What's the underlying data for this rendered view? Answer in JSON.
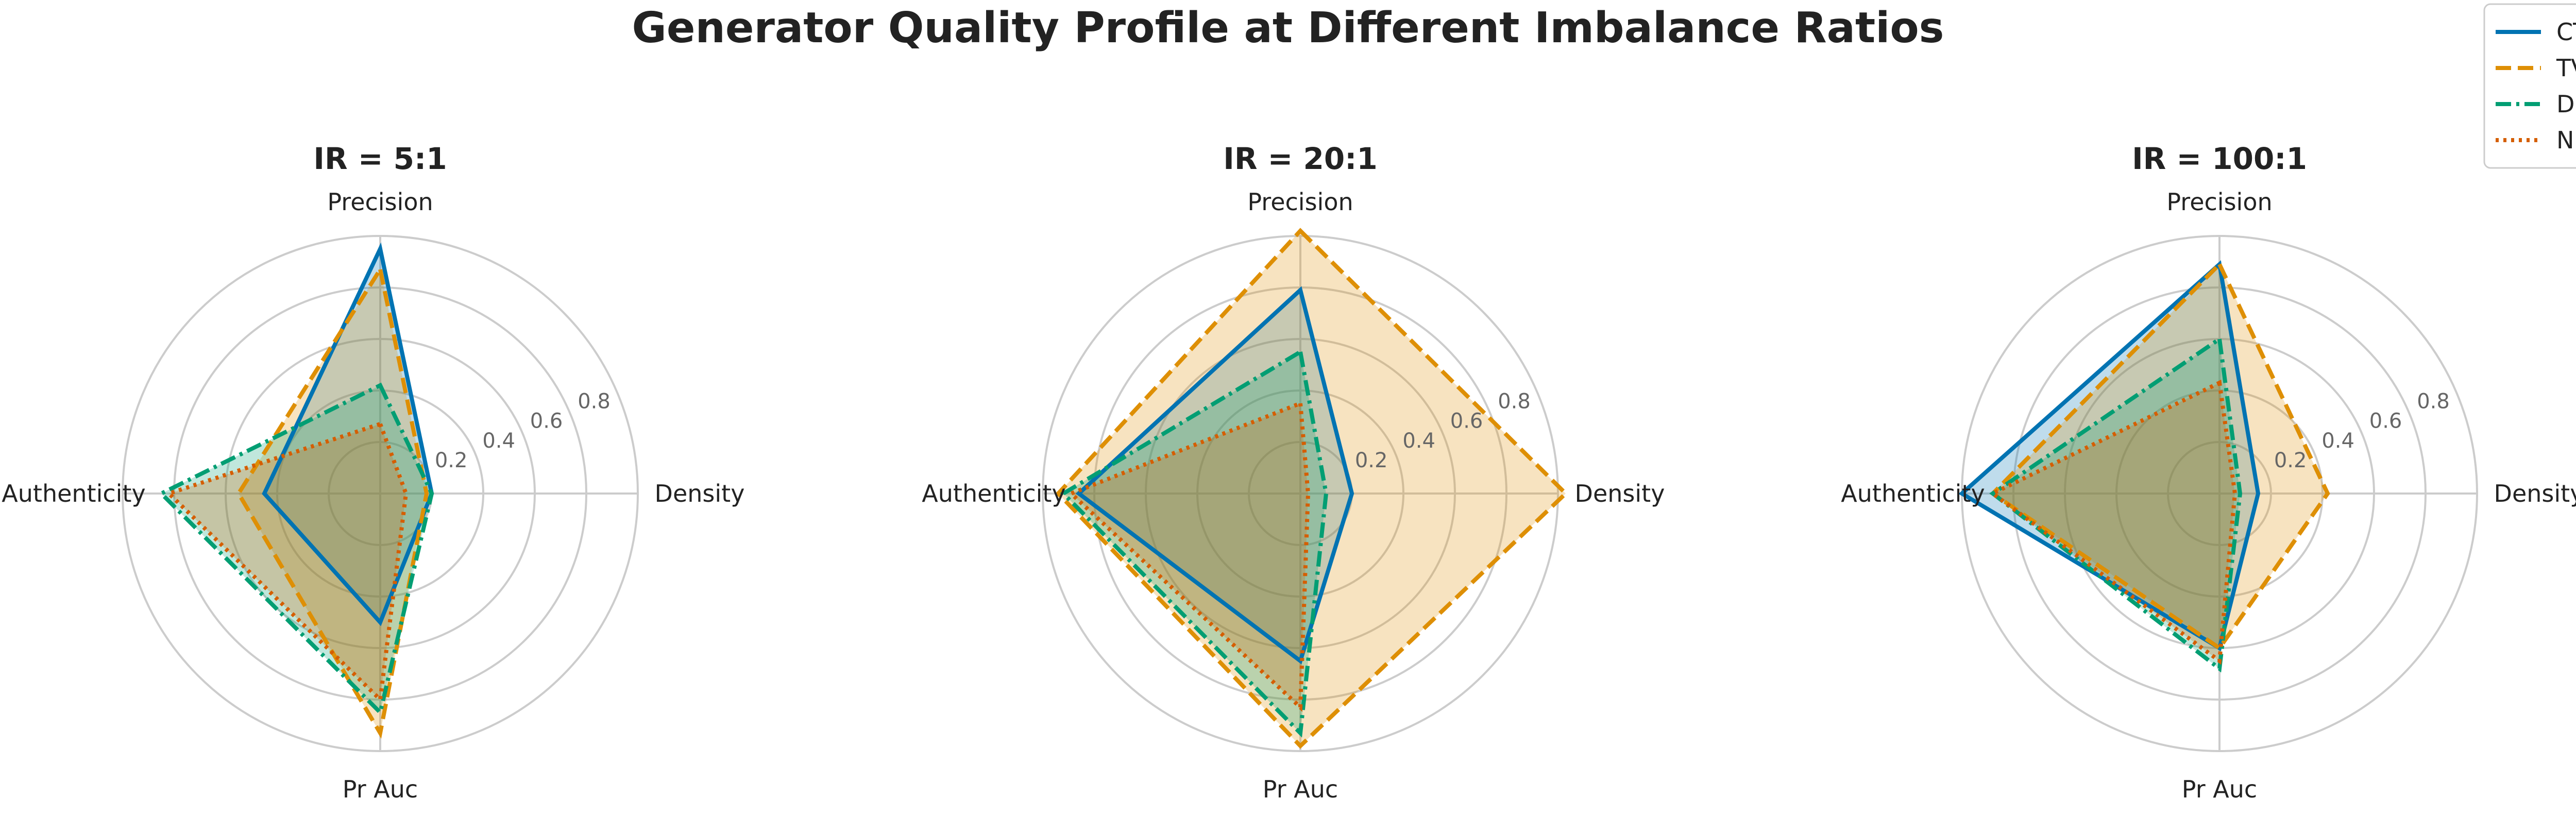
{
  "suptitle": "Generator Quality Profile at Different Imbalance Ratios",
  "chart_data": [
    {
      "type": "radar",
      "title": "IR = 5:1",
      "axes": [
        "Precision",
        "Density",
        "Pr Auc",
        "Authenticity"
      ],
      "rlim": [
        0,
        1
      ],
      "rticks": [
        "0.2",
        "0.4",
        "0.6",
        "0.8"
      ],
      "grid": true,
      "series": [
        {
          "name": "CTGAN",
          "values": [
            0.95,
            0.2,
            0.5,
            0.45
          ]
        },
        {
          "name": "TVAE",
          "values": [
            0.87,
            0.18,
            0.93,
            0.55
          ]
        },
        {
          "name": "DDPM",
          "values": [
            0.42,
            0.2,
            0.85,
            0.85
          ]
        },
        {
          "name": "NFLOW",
          "values": [
            0.27,
            0.1,
            0.8,
            0.82
          ]
        }
      ]
    },
    {
      "type": "radar",
      "title": "IR = 20:1",
      "axes": [
        "Precision",
        "Density",
        "Pr Auc",
        "Authenticity"
      ],
      "rlim": [
        0,
        1
      ],
      "rticks": [
        "0.2",
        "0.4",
        "0.6",
        "0.8"
      ],
      "grid": true,
      "series": [
        {
          "name": "CTGAN",
          "values": [
            0.79,
            0.2,
            0.65,
            0.86
          ]
        },
        {
          "name": "TVAE",
          "values": [
            1.02,
            1.03,
            0.98,
            0.94
          ]
        },
        {
          "name": "DDPM",
          "values": [
            0.55,
            0.1,
            0.93,
            0.92
          ]
        },
        {
          "name": "NFLOW",
          "values": [
            0.35,
            0.03,
            0.83,
            0.89
          ]
        }
      ]
    },
    {
      "type": "radar",
      "title": "IR = 100:1",
      "axes": [
        "Precision",
        "Density",
        "Pr Auc",
        "Authenticity"
      ],
      "rlim": [
        0,
        1
      ],
      "rticks": [
        "0.2",
        "0.4",
        "0.6",
        "0.8"
      ],
      "grid": true,
      "series": [
        {
          "name": "CTGAN",
          "values": [
            0.89,
            0.15,
            0.6,
            1.0
          ]
        },
        {
          "name": "TVAE",
          "values": [
            0.89,
            0.42,
            0.6,
            0.88
          ]
        },
        {
          "name": "DDPM",
          "values": [
            0.6,
            0.08,
            0.68,
            0.88
          ]
        },
        {
          "name": "NFLOW",
          "values": [
            0.43,
            0.06,
            0.65,
            0.88
          ]
        }
      ]
    }
  ],
  "legend": {
    "placement": "top-right",
    "entries": [
      {
        "name": "CTGAN",
        "color": "#0173b2",
        "dash": "solid"
      },
      {
        "name": "TVAE",
        "color": "#de8f05",
        "dash": "dashed"
      },
      {
        "name": "DDPM",
        "color": "#029e73",
        "dash": "dashdot"
      },
      {
        "name": "NFLOW",
        "color": "#d55e00",
        "dash": "dotted"
      }
    ]
  }
}
